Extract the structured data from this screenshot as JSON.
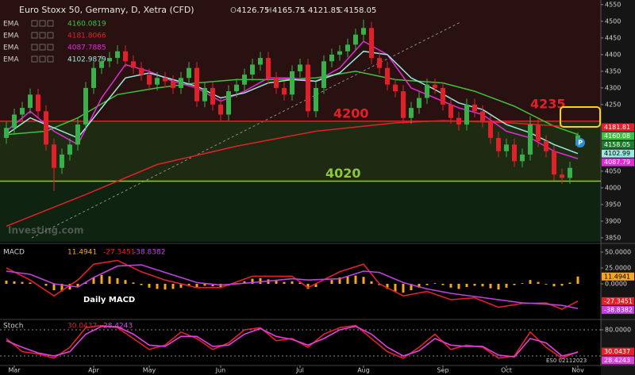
{
  "chart_data": [
    {
      "type": "candlestick",
      "title": "Euro Stoxx 50, Germany, D, Xetra (CFD)",
      "ohlc_labels": [
        "O",
        "H",
        "L",
        "C"
      ],
      "watermark": "Investing.com",
      "pivot_label": "P",
      "color_up": "#35b24a",
      "color_down": "#e3202a",
      "xlim": [
        -0.8,
        74.9
      ],
      "ylim": [
        3838,
        4564
      ],
      "xticks": [
        {
          "value": 1,
          "label": "Mar"
        },
        {
          "value": 11,
          "label": "Apr"
        },
        {
          "value": 18,
          "label": "May"
        },
        {
          "value": 27,
          "label": "Jun"
        },
        {
          "value": 37,
          "label": "Jul"
        },
        {
          "value": 45,
          "label": "Aug"
        },
        {
          "value": 55,
          "label": "Sep"
        },
        {
          "value": 63,
          "label": "Oct"
        },
        {
          "value": 72,
          "label": "Nov"
        }
      ],
      "yticks": [
        4550,
        4500,
        4450,
        4400,
        4350,
        4300,
        4250,
        4050,
        4000,
        3950,
        3900,
        3850
      ],
      "x": [
        0,
        1,
        2,
        3,
        4,
        5,
        6,
        7,
        8,
        9,
        10,
        11,
        12,
        13,
        14,
        15,
        16,
        17,
        18,
        19,
        20,
        21,
        22,
        23,
        24,
        25,
        26,
        27,
        28,
        29,
        30,
        31,
        32,
        33,
        34,
        35,
        36,
        37,
        38,
        39,
        40,
        41,
        42,
        43,
        44,
        45,
        46,
        47,
        48,
        49,
        50,
        51,
        52,
        53,
        54,
        55,
        56,
        57,
        58,
        59,
        60,
        61,
        62,
        63,
        64,
        65,
        66,
        67,
        68,
        69,
        70,
        71,
        72
      ],
      "open": [
        4150,
        4180,
        4220,
        4240,
        4280,
        4230,
        4130,
        4060,
        4100,
        4130,
        4190,
        4300,
        4360,
        4380,
        4390,
        4410,
        4380,
        4360,
        4340,
        4310,
        4330,
        4320,
        4300,
        4330,
        4360,
        4260,
        4300,
        4250,
        4220,
        4290,
        4310,
        4340,
        4370,
        4390,
        4330,
        4300,
        4280,
        4350,
        4370,
        4230,
        4300,
        4380,
        4400,
        4410,
        4430,
        4460,
        4480,
        4390,
        4360,
        4310,
        4290,
        4210,
        4240,
        4270,
        4310,
        4300,
        4250,
        4210,
        4190,
        4250,
        4230,
        4200,
        4150,
        4110,
        4130,
        4080,
        4100,
        4190,
        4140,
        4110,
        4040,
        4030,
        4126.75
      ],
      "high": [
        4198,
        4238,
        4258,
        4298,
        4298,
        4248,
        4148,
        4118,
        4148,
        4208,
        4318,
        4378,
        4398,
        4408,
        4428,
        4428,
        4398,
        4378,
        4358,
        4348,
        4348,
        4338,
        4348,
        4378,
        4378,
        4318,
        4318,
        4268,
        4308,
        4328,
        4358,
        4388,
        4408,
        4408,
        4348,
        4318,
        4368,
        4388,
        4388,
        4318,
        4398,
        4418,
        4428,
        4448,
        4478,
        4505,
        4498,
        4408,
        4378,
        4328,
        4308,
        4258,
        4288,
        4328,
        4328,
        4318,
        4268,
        4228,
        4268,
        4268,
        4248,
        4218,
        4168,
        4148,
        4148,
        4118,
        4215,
        4208,
        4158,
        4128,
        4058,
        4078,
        4165.75
      ],
      "low": [
        4132,
        4162,
        4202,
        4222,
        4212,
        4112,
        3990,
        4042,
        4082,
        4112,
        4172,
        4282,
        4342,
        4362,
        4372,
        4362,
        4342,
        4322,
        4292,
        4292,
        4302,
        4282,
        4282,
        4312,
        4242,
        4242,
        4232,
        4202,
        4202,
        4272,
        4292,
        4322,
        4352,
        4312,
        4282,
        4262,
        4262,
        4332,
        4212,
        4212,
        4282,
        4362,
        4382,
        4392,
        4412,
        4442,
        4372,
        4342,
        4292,
        4272,
        4192,
        4192,
        4222,
        4252,
        4282,
        4232,
        4192,
        4172,
        4172,
        4212,
        4182,
        4132,
        4092,
        4092,
        4062,
        4062,
        4082,
        4122,
        4092,
        4022,
        4012,
        4012,
        4121.85
      ],
      "close": [
        4180,
        4220,
        4240,
        4280,
        4230,
        4130,
        4060,
        4100,
        4130,
        4190,
        4300,
        4360,
        4380,
        4390,
        4410,
        4380,
        4360,
        4340,
        4310,
        4330,
        4320,
        4300,
        4330,
        4360,
        4260,
        4300,
        4250,
        4220,
        4290,
        4310,
        4340,
        4370,
        4390,
        4330,
        4300,
        4280,
        4350,
        4370,
        4230,
        4300,
        4380,
        4400,
        4410,
        4430,
        4460,
        4480,
        4390,
        4360,
        4310,
        4290,
        4210,
        4240,
        4270,
        4310,
        4300,
        4250,
        4210,
        4190,
        4250,
        4230,
        4200,
        4150,
        4110,
        4130,
        4080,
        4100,
        4190,
        4140,
        4110,
        4040,
        4030,
        4060,
        4158.05
      ],
      "series": [
        {
          "name": "EMA",
          "color": "#3cc23c",
          "x": [
            0,
            5,
            9,
            14,
            19,
            24,
            29,
            34,
            39,
            44,
            49,
            55,
            59,
            64,
            69,
            72
          ],
          "values": [
            4160,
            4170,
            4210,
            4280,
            4300,
            4315,
            4325,
            4325,
            4330,
            4350,
            4325,
            4315,
            4290,
            4245,
            4185,
            4160.0819
          ],
          "value_labels": [
            null,
            null,
            null,
            null,
            null,
            null,
            null,
            null,
            null,
            null,
            null,
            null,
            null,
            null,
            null,
            "4160.08"
          ]
        },
        {
          "name": "EMA",
          "color": "#e3202a",
          "x": [
            0,
            10,
            19,
            29,
            39,
            49,
            55,
            63,
            72
          ],
          "values": [
            3885,
            3980,
            4070,
            4125,
            4170,
            4195,
            4202,
            4196,
            4181.8066
          ],
          "value_labels": [
            null,
            null,
            null,
            null,
            null,
            null,
            null,
            null,
            "4181.81"
          ]
        },
        {
          "name": "EMA",
          "color": "#e22bd8",
          "x": [
            0,
            3,
            6,
            9,
            12,
            15,
            18,
            21,
            24,
            27,
            30,
            33,
            36,
            39,
            42,
            45,
            48,
            51,
            54,
            57,
            60,
            63,
            66,
            69,
            72
          ],
          "values": [
            4170,
            4230,
            4170,
            4130,
            4270,
            4370,
            4350,
            4320,
            4300,
            4260,
            4290,
            4330,
            4330,
            4320,
            4360,
            4440,
            4400,
            4300,
            4270,
            4240,
            4220,
            4170,
            4150,
            4110,
            4087.7885
          ],
          "value_labels": [
            null,
            null,
            null,
            null,
            null,
            null,
            null,
            null,
            null,
            null,
            null,
            null,
            null,
            null,
            null,
            null,
            null,
            null,
            null,
            null,
            null,
            null,
            null,
            null,
            "4087.79"
          ]
        },
        {
          "name": "EMA",
          "color": "#9fe8e0",
          "x": [
            0,
            3,
            6,
            9,
            12,
            15,
            18,
            21,
            24,
            27,
            30,
            33,
            36,
            39,
            42,
            45,
            48,
            51,
            54,
            57,
            60,
            63,
            66,
            69,
            72
          ],
          "values": [
            4160,
            4210,
            4180,
            4150,
            4240,
            4330,
            4345,
            4325,
            4305,
            4270,
            4285,
            4315,
            4325,
            4320,
            4345,
            4410,
            4400,
            4330,
            4295,
            4255,
            4235,
            4190,
            4165,
            4130,
            4102.9879
          ],
          "value_labels": [
            null,
            null,
            null,
            null,
            null,
            null,
            null,
            null,
            null,
            null,
            null,
            null,
            null,
            null,
            null,
            null,
            null,
            null,
            null,
            null,
            null,
            null,
            null,
            null,
            "4102.99"
          ]
        }
      ],
      "levels": [
        {
          "value": 4200,
          "color": "#e3202a",
          "line": true
        },
        {
          "value": 4235,
          "color": "#e3202a",
          "line": false
        },
        {
          "value": 4020,
          "color": "#8dc63f",
          "line": true
        }
      ]
    },
    {
      "type": "macd",
      "name": "MACD",
      "annotation": "Daily MACD",
      "xlim": [
        -0.8,
        74.9
      ],
      "ylim": [
        -55,
        60
      ],
      "yticks": [
        {
          "value": 50,
          "label": "50.0000"
        },
        {
          "value": 25,
          "label": "25.0000"
        },
        {
          "value": 0,
          "label": "0.0000"
        }
      ],
      "histogram": {
        "color": "#f5a623",
        "x": [
          0,
          1,
          2,
          3,
          4,
          5,
          6,
          7,
          8,
          9,
          10,
          11,
          12,
          13,
          14,
          15,
          16,
          17,
          18,
          19,
          20,
          21,
          22,
          23,
          24,
          25,
          26,
          27,
          28,
          29,
          30,
          31,
          32,
          33,
          34,
          35,
          36,
          37,
          38,
          39,
          40,
          41,
          42,
          43,
          44,
          45,
          46,
          47,
          48,
          49,
          50,
          51,
          52,
          53,
          54,
          55,
          56,
          57,
          58,
          59,
          60,
          61,
          62,
          63,
          64,
          65,
          66,
          67,
          68,
          69,
          70,
          71,
          72
        ],
        "values": [
          5,
          4,
          3,
          2,
          0,
          -3,
          -10,
          -12,
          -9,
          -4,
          2,
          10,
          14,
          12,
          9,
          6,
          2,
          -2,
          -6,
          -8,
          -9,
          -8,
          -6,
          -4,
          -5,
          -3,
          -4,
          -5,
          -3,
          1,
          4,
          8,
          9,
          7,
          5,
          3,
          4,
          2,
          -8,
          -5,
          0,
          6,
          10,
          12,
          13,
          11,
          4,
          -2,
          -8,
          -12,
          -14,
          -10,
          -6,
          -2,
          1,
          -2,
          -6,
          -8,
          -5,
          -3,
          -4,
          -7,
          -9,
          -6,
          -2,
          1,
          6,
          3,
          -1,
          -4,
          -3,
          2,
          11.4941
        ]
      },
      "series": [
        {
          "color": "#e3202a",
          "x": [
            0,
            3,
            6,
            9,
            11,
            14,
            17,
            20,
            24,
            27,
            31,
            36,
            38,
            42,
            45,
            47,
            50,
            53,
            56,
            59,
            62,
            65,
            68,
            70,
            72
          ],
          "values": [
            25,
            6,
            -19,
            6,
            31,
            37,
            19,
            6,
            -6,
            -6,
            12,
            12,
            -6,
            19,
            31,
            0,
            -19,
            -12,
            -25,
            -22,
            -37,
            -31,
            -30,
            -40,
            -27.3451
          ]
        },
        {
          "color": "#c040e0",
          "x": [
            0,
            3,
            6,
            9,
            11,
            14,
            17,
            20,
            24,
            27,
            31,
            36,
            38,
            42,
            45,
            47,
            50,
            53,
            56,
            59,
            62,
            65,
            68,
            70,
            72
          ],
          "values": [
            20,
            15,
            0,
            -5,
            10,
            28,
            30,
            18,
            2,
            -2,
            2,
            8,
            6,
            8,
            20,
            18,
            2,
            -8,
            -15,
            -20,
            -25,
            -30,
            -32,
            -34,
            -38.8382
          ]
        }
      ]
    },
    {
      "type": "stoch",
      "name": "Stoch",
      "note": "ES0 02112023",
      "xlim": [
        -0.8,
        74.9
      ],
      "ylim": [
        0,
        100
      ],
      "yticks": [
        {
          "value": 80,
          "label": "80.0000"
        }
      ],
      "bands": [
        80,
        20
      ],
      "series": [
        {
          "color": "#e3202a",
          "x": [
            0,
            2,
            4,
            6,
            8,
            10,
            12,
            14,
            16,
            18,
            20,
            22,
            24,
            26,
            28,
            30,
            32,
            34,
            36,
            38,
            40,
            42,
            44,
            46,
            48,
            50,
            52,
            54,
            56,
            58,
            60,
            62,
            64,
            66,
            68,
            70,
            72
          ],
          "values": [
            60,
            30,
            25,
            15,
            40,
            85,
            90,
            85,
            60,
            35,
            45,
            75,
            60,
            35,
            50,
            80,
            85,
            55,
            60,
            40,
            70,
            85,
            90,
            60,
            30,
            15,
            40,
            70,
            35,
            45,
            40,
            15,
            20,
            75,
            40,
            15,
            30.0437
          ]
        },
        {
          "color": "#e040e0",
          "x": [
            0,
            2,
            4,
            6,
            8,
            10,
            12,
            14,
            16,
            18,
            20,
            22,
            24,
            26,
            28,
            30,
            32,
            34,
            36,
            38,
            40,
            42,
            44,
            46,
            48,
            50,
            52,
            54,
            56,
            58,
            60,
            62,
            64,
            66,
            68,
            70,
            72
          ],
          "values": [
            55,
            40,
            27,
            20,
            30,
            70,
            88,
            87,
            70,
            45,
            42,
            65,
            65,
            42,
            45,
            70,
            83,
            65,
            58,
            45,
            60,
            80,
            88,
            70,
            40,
            20,
            32,
            60,
            45,
            42,
            42,
            22,
            18,
            60,
            50,
            20,
            28.4243
          ]
        }
      ]
    }
  ]
}
